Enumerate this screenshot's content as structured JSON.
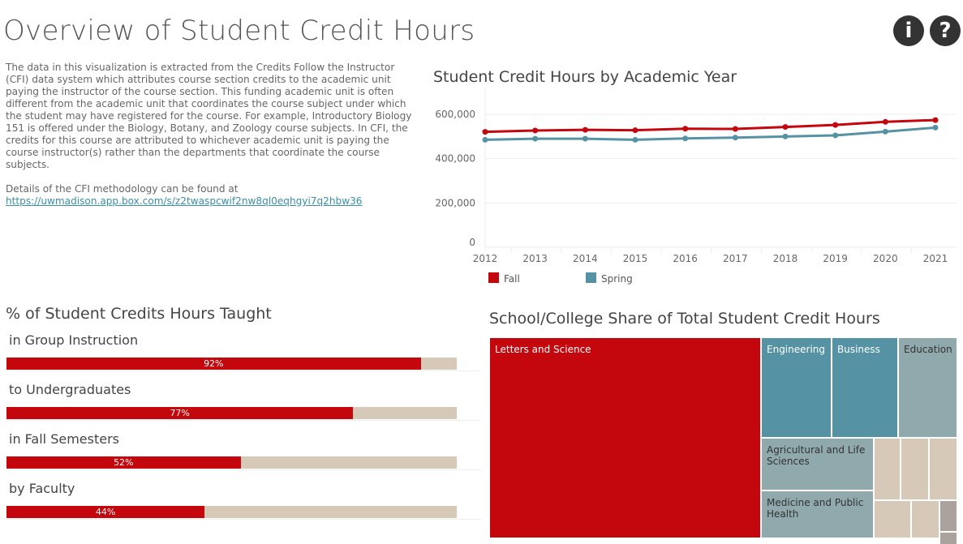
{
  "title": "Overview of Student Credit Hours",
  "icons": {
    "info": "info-icon",
    "help": "question-icon"
  },
  "description": {
    "paragraph": "The data in this visualization is extracted from the Credits Follow the Instructor (CFI) data system which attributes course section credits to the academic unit paying the instructor of the course section. This funding academic unit is often different from the academic unit that coordinates the course subject under which the student may have registered for the course. For example, Introductory Biology 151 is offered under the Biology, Botany, and Zoology course subjects. In CFI, the credits for this course are attributed to whichever academic unit is paying the course instructor(s) rather than the departments that coordinate the course subjects.",
    "details": "Details of the CFI methodology can be found at",
    "link": "https://uwmadison.app.box.com/s/z2twaspcwif2nw8ql0eqhgyi7q2hbw36"
  },
  "colors": {
    "fall": "#c4060d",
    "spring": "#5592a3",
    "track": "#d6c9b8"
  },
  "chart_data": [
    {
      "type": "line",
      "title": "Student Credit Hours by Academic Year",
      "x": [
        "2012",
        "2013",
        "2014",
        "2015",
        "2016",
        "2017",
        "2018",
        "2019",
        "2020",
        "2021"
      ],
      "yticks": [
        "0",
        "200,000",
        "400,000",
        "600,000"
      ],
      "ylim": [
        0,
        700000
      ],
      "grid": true,
      "legend": "bottom-left",
      "series": [
        {
          "name": "Fall",
          "values": [
            521000,
            527000,
            530000,
            528000,
            535000,
            534000,
            543000,
            552000,
            566000,
            574000
          ]
        },
        {
          "name": "Spring",
          "values": [
            485000,
            490000,
            490000,
            485000,
            491000,
            495000,
            500000,
            505000,
            522000,
            540000
          ]
        }
      ]
    },
    {
      "type": "bar",
      "title": "% of Student Credits Hours Taught",
      "categories": [
        "in Group Instruction",
        "to Undergraduates",
        "in Fall Semesters",
        "by Faculty"
      ],
      "values": [
        92,
        77,
        52,
        44
      ],
      "labels": [
        "92%",
        "77%",
        "52%",
        "44%"
      ]
    },
    {
      "type": "treemap",
      "title": "School/College Share of Total Student Credit Hours",
      "labels": [
        "Letters and Science",
        "Engineering",
        "Business",
        "Education",
        "Agricultural and Life Sciences",
        "Medicine and Public Health"
      ]
    }
  ]
}
